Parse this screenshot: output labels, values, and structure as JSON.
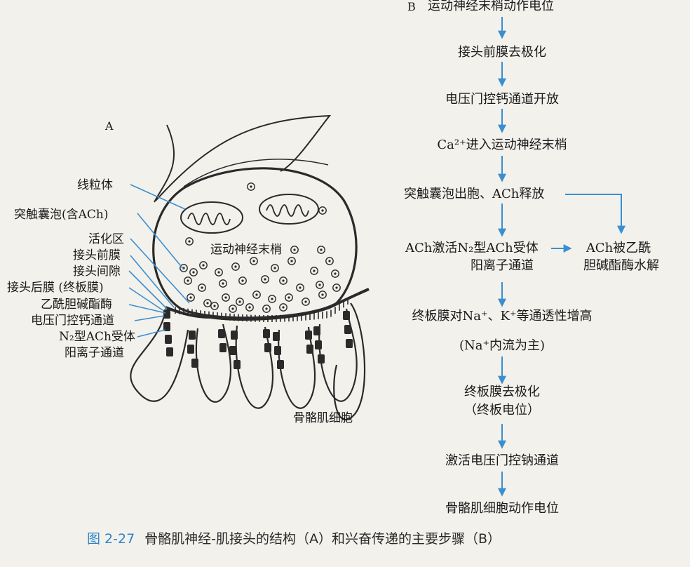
{
  "panel_a": {
    "letter": "A",
    "terminal_label": "运动神经末梢",
    "muscle_label": "骨骼肌细胞",
    "labels": [
      "线粒体",
      "突触囊泡(含ACh)",
      "活化区",
      "接头前膜",
      "接头间隙",
      "接头后膜 (终板膜)",
      "乙酰胆碱酯酶",
      "电压门控钙通道",
      "N₂型ACh受体",
      "阳离子通道"
    ]
  },
  "panel_b": {
    "letter": "B",
    "steps": {
      "s1": "运动神经末梢动作电位",
      "s2": "接头前膜去极化",
      "s3": "电压门控钙通道开放",
      "s4": "Ca²⁺进入运动神经末梢",
      "s5": "突触囊泡出胞、ACh释放",
      "s6a": "ACh激活N₂型ACh受体",
      "s6b": "阳离子通道",
      "side_a": "ACh被乙酰",
      "side_b": "胆碱酯酶水解",
      "s7a": "终板膜对Na⁺、K⁺等通透性增高",
      "s7b": "(Na⁺内流为主)",
      "s8a": "终板膜去极化",
      "s8b": "（终板电位）",
      "s9": "激活电压门控钠通道",
      "s10": "骨骼肌细胞动作电位"
    },
    "arrow_color": "#3a8fd0"
  },
  "caption": {
    "figure_number": "图 2-27",
    "text": "骨骼肌神经-肌接头的结构（A）和兴奋传递的主要步骤（B）"
  },
  "colors": {
    "accent": "#2f84c8",
    "line": "#2a2a2a",
    "label_line": "#3a8fd0"
  }
}
